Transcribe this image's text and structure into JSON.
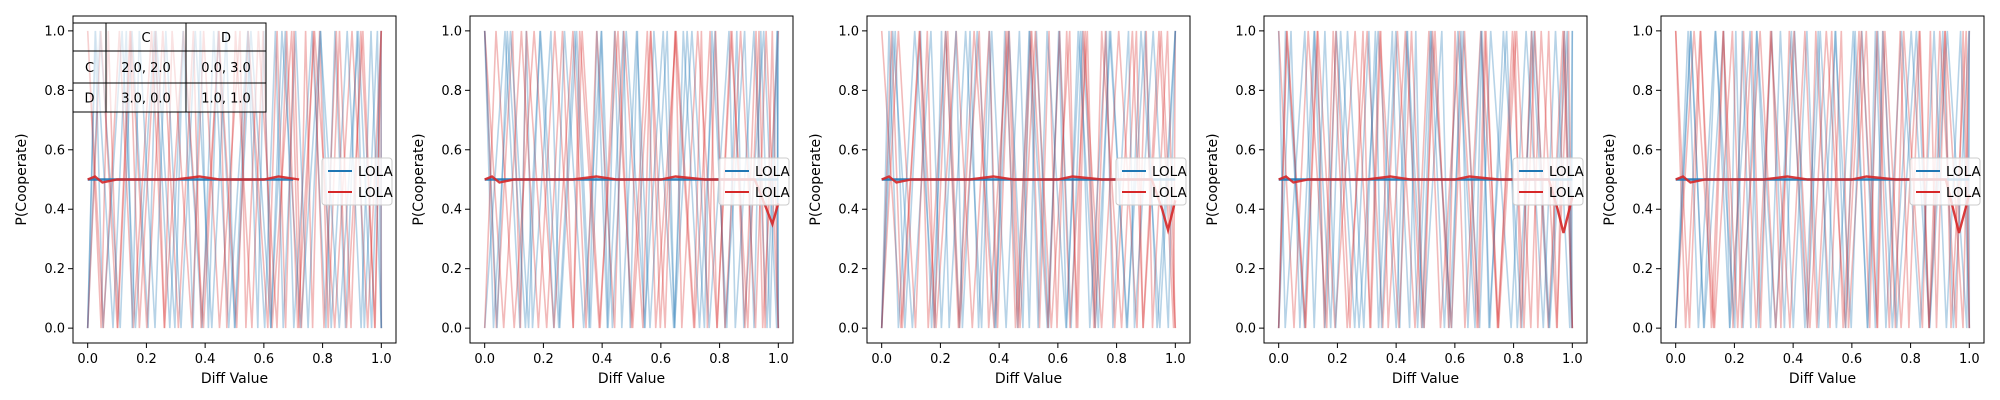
{
  "colors": {
    "blue": "#1f77b4",
    "red": "#d62728",
    "frame": "#000000"
  },
  "payoff_table": {
    "col_headers": [
      "",
      "C",
      "D"
    ],
    "rows": [
      {
        "label": "C",
        "cells": [
          "2.0, 2.0",
          "0.0, 3.0"
        ]
      },
      {
        "label": "D",
        "cells": [
          "3.0, 0.0",
          "1.0, 1.0"
        ]
      }
    ]
  },
  "chart_data": [
    {
      "type": "line",
      "xlabel": "Diff Value",
      "ylabel": "P(Cooperate)",
      "xlim": [
        -0.05,
        1.05
      ],
      "ylim": [
        -0.05,
        1.05
      ],
      "xticks": [
        "0.0",
        "0.2",
        "0.4",
        "0.6",
        "0.8",
        "1.0"
      ],
      "yticks": [
        "0.0",
        "0.2",
        "0.4",
        "0.6",
        "0.8",
        "1.0"
      ],
      "legend": {
        "placement": "center-right",
        "entries": [
          "LOLA",
          "LOLA"
        ]
      },
      "series": [
        {
          "name": "LOLA",
          "color": "#1f77b4",
          "x": [
            0.0,
            0.1,
            0.2,
            0.3,
            0.4,
            0.5,
            0.6,
            0.7
          ],
          "y": [
            0.5,
            0.5,
            0.5,
            0.5,
            0.5,
            0.5,
            0.5,
            0.5
          ]
        },
        {
          "name": "LOLA",
          "color": "#d62728",
          "x": [
            0.0,
            0.025,
            0.05,
            0.1,
            0.2,
            0.3,
            0.38,
            0.45,
            0.5,
            0.6,
            0.65,
            0.72
          ],
          "y": [
            0.5,
            0.51,
            0.49,
            0.5,
            0.5,
            0.5,
            0.51,
            0.5,
            0.5,
            0.5,
            0.51,
            0.5
          ]
        }
      ]
    },
    {
      "type": "line",
      "xlabel": "Diff Value",
      "ylabel": "P(Cooperate)",
      "xlim": [
        -0.05,
        1.05
      ],
      "ylim": [
        -0.05,
        1.05
      ],
      "xticks": [
        "0.0",
        "0.2",
        "0.4",
        "0.6",
        "0.8",
        "1.0"
      ],
      "yticks": [
        "0.0",
        "0.2",
        "0.4",
        "0.6",
        "0.8",
        "1.0"
      ],
      "legend": {
        "placement": "center-right",
        "entries": [
          "LOLA",
          "LOLA"
        ]
      },
      "series": [
        {
          "name": "LOLA",
          "color": "#1f77b4",
          "x": [
            0.0,
            0.1,
            0.2,
            0.3,
            0.4,
            0.5,
            0.6,
            0.7,
            0.8,
            0.9,
            1.0
          ],
          "y": [
            0.5,
            0.5,
            0.5,
            0.5,
            0.5,
            0.5,
            0.5,
            0.5,
            0.5,
            0.5,
            0.5
          ]
        },
        {
          "name": "LOLA",
          "color": "#d62728",
          "x": [
            0.0,
            0.025,
            0.05,
            0.1,
            0.2,
            0.3,
            0.38,
            0.45,
            0.5,
            0.6,
            0.65,
            0.75,
            0.85,
            0.92,
            0.96,
            0.98,
            1.0
          ],
          "y": [
            0.5,
            0.51,
            0.49,
            0.5,
            0.5,
            0.5,
            0.51,
            0.5,
            0.5,
            0.5,
            0.51,
            0.5,
            0.5,
            0.5,
            0.4,
            0.35,
            0.42
          ]
        }
      ]
    },
    {
      "type": "line",
      "xlabel": "Diff Value",
      "ylabel": "P(Cooperate)",
      "xlim": [
        -0.05,
        1.05
      ],
      "ylim": [
        -0.05,
        1.05
      ],
      "xticks": [
        "0.0",
        "0.2",
        "0.4",
        "0.6",
        "0.8",
        "1.0"
      ],
      "yticks": [
        "0.0",
        "0.2",
        "0.4",
        "0.6",
        "0.8",
        "1.0"
      ],
      "legend": {
        "placement": "center-right",
        "entries": [
          "LOLA",
          "LOLA"
        ]
      },
      "series": [
        {
          "name": "LOLA",
          "color": "#1f77b4",
          "x": [
            0.0,
            0.1,
            0.2,
            0.3,
            0.4,
            0.5,
            0.6,
            0.7,
            0.8,
            0.9,
            1.0
          ],
          "y": [
            0.5,
            0.5,
            0.5,
            0.5,
            0.5,
            0.5,
            0.5,
            0.5,
            0.5,
            0.5,
            0.5
          ]
        },
        {
          "name": "LOLA",
          "color": "#d62728",
          "x": [
            0.0,
            0.025,
            0.05,
            0.1,
            0.2,
            0.3,
            0.38,
            0.45,
            0.5,
            0.6,
            0.65,
            0.75,
            0.85,
            0.92,
            0.955,
            0.975,
            1.0
          ],
          "y": [
            0.5,
            0.51,
            0.49,
            0.5,
            0.5,
            0.5,
            0.51,
            0.5,
            0.5,
            0.5,
            0.51,
            0.5,
            0.5,
            0.5,
            0.4,
            0.33,
            0.43
          ]
        }
      ]
    },
    {
      "type": "line",
      "xlabel": "Diff Value",
      "ylabel": "P(Cooperate)",
      "xlim": [
        -0.05,
        1.05
      ],
      "ylim": [
        -0.05,
        1.05
      ],
      "xticks": [
        "0.0",
        "0.2",
        "0.4",
        "0.6",
        "0.8",
        "1.0"
      ],
      "yticks": [
        "0.0",
        "0.2",
        "0.4",
        "0.6",
        "0.8",
        "1.0"
      ],
      "legend": {
        "placement": "center-right",
        "entries": [
          "LOLA",
          "LOLA"
        ]
      },
      "series": [
        {
          "name": "LOLA",
          "color": "#1f77b4",
          "x": [
            0.0,
            0.1,
            0.2,
            0.3,
            0.4,
            0.5,
            0.6,
            0.7,
            0.8,
            0.9,
            1.0
          ],
          "y": [
            0.5,
            0.5,
            0.5,
            0.5,
            0.5,
            0.5,
            0.5,
            0.5,
            0.5,
            0.5,
            0.5
          ]
        },
        {
          "name": "LOLA",
          "color": "#d62728",
          "x": [
            0.0,
            0.025,
            0.05,
            0.1,
            0.2,
            0.3,
            0.38,
            0.45,
            0.5,
            0.6,
            0.65,
            0.75,
            0.85,
            0.92,
            0.95,
            0.97,
            1.0
          ],
          "y": [
            0.5,
            0.51,
            0.49,
            0.5,
            0.5,
            0.5,
            0.51,
            0.5,
            0.5,
            0.5,
            0.51,
            0.5,
            0.5,
            0.5,
            0.4,
            0.32,
            0.44
          ]
        }
      ]
    },
    {
      "type": "line",
      "xlabel": "Diff Value",
      "ylabel": "P(Cooperate)",
      "xlim": [
        -0.05,
        1.05
      ],
      "ylim": [
        -0.05,
        1.05
      ],
      "xticks": [
        "0.0",
        "0.2",
        "0.4",
        "0.6",
        "0.8",
        "1.0"
      ],
      "yticks": [
        "0.0",
        "0.2",
        "0.4",
        "0.6",
        "0.8",
        "1.0"
      ],
      "legend": {
        "placement": "center-right",
        "entries": [
          "LOLA",
          "LOLA"
        ]
      },
      "series": [
        {
          "name": "LOLA",
          "color": "#1f77b4",
          "x": [
            0.0,
            0.1,
            0.2,
            0.3,
            0.4,
            0.5,
            0.6,
            0.7,
            0.8,
            0.9,
            1.0
          ],
          "y": [
            0.5,
            0.5,
            0.5,
            0.5,
            0.5,
            0.5,
            0.5,
            0.5,
            0.5,
            0.5,
            0.5
          ]
        },
        {
          "name": "LOLA",
          "color": "#d62728",
          "x": [
            0.0,
            0.025,
            0.05,
            0.1,
            0.2,
            0.3,
            0.38,
            0.45,
            0.5,
            0.6,
            0.65,
            0.75,
            0.85,
            0.92,
            0.945,
            0.965,
            1.0
          ],
          "y": [
            0.5,
            0.51,
            0.49,
            0.5,
            0.5,
            0.5,
            0.51,
            0.5,
            0.5,
            0.5,
            0.51,
            0.5,
            0.5,
            0.5,
            0.4,
            0.32,
            0.45
          ]
        }
      ]
    }
  ]
}
